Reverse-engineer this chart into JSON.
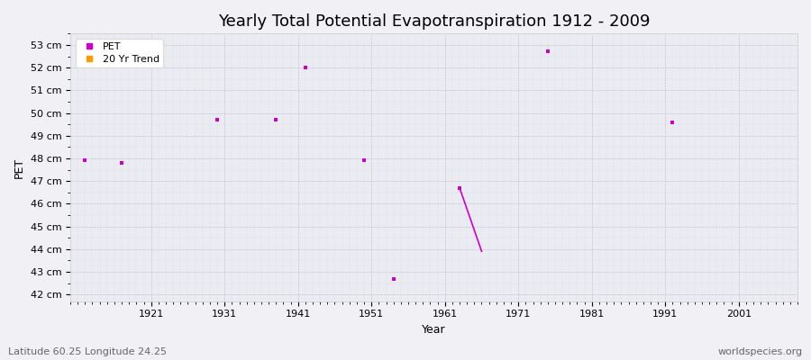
{
  "title": "Yearly Total Potential Evapotranspiration 1912 - 2009",
  "xlabel": "Year",
  "ylabel": "PET",
  "footer_left": "Latitude 60.25 Longitude 24.25",
  "footer_right": "worldspecies.org",
  "background_color": "#f0f0f5",
  "plot_background": "#ebebf2",
  "yticks": [
    42,
    43,
    44,
    45,
    46,
    47,
    48,
    49,
    50,
    51,
    52,
    53
  ],
  "ylim": [
    41.7,
    53.5
  ],
  "xlim": [
    1910,
    2009
  ],
  "xticks": [
    1921,
    1931,
    1941,
    1951,
    1961,
    1971,
    1981,
    1991,
    2001
  ],
  "pet_color": "#cc00cc",
  "trend_color": "#ff9900",
  "data_points": [
    {
      "year": 1912,
      "pet": 47.9
    },
    {
      "year": 1917,
      "pet": 47.8
    },
    {
      "year": 1930,
      "pet": 49.7
    },
    {
      "year": 1938,
      "pet": 49.7
    },
    {
      "year": 1942,
      "pet": 52.0
    },
    {
      "year": 1950,
      "pet": 47.9
    },
    {
      "year": 1954,
      "pet": 42.7
    },
    {
      "year": 1963,
      "pet": 46.7
    },
    {
      "year": 1975,
      "pet": 52.7
    },
    {
      "year": 1992,
      "pet": 49.6
    }
  ],
  "trend_line": [
    {
      "year": 1963,
      "pet": 46.7
    },
    {
      "year": 1966,
      "pet": 43.9
    }
  ],
  "title_fontsize": 13,
  "axis_fontsize": 9,
  "tick_fontsize": 8,
  "footer_fontsize": 8
}
